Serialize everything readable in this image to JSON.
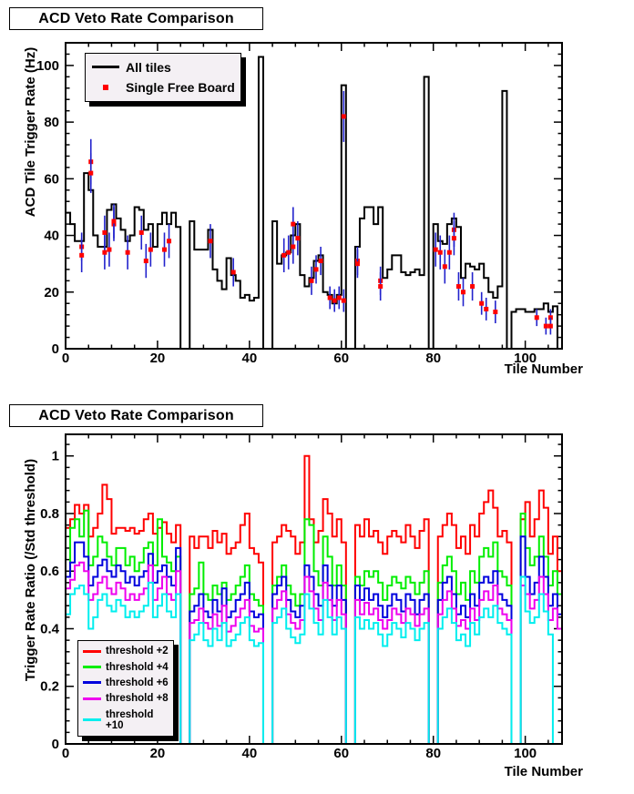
{
  "colors": {
    "frame": "#000000",
    "background": "#ffffff",
    "legend_background": "#f4f0f4",
    "error_bar": "#2222cc",
    "marker": "#ff0000"
  },
  "chart_data": [
    {
      "type": "step-histogram",
      "title": "ACD Veto Rate Comparison",
      "xlabel": "Tile Number",
      "ylabel": "ACD Tile Trigger Rate (Hz)",
      "xlim": [
        0,
        108
      ],
      "ylim": [
        0,
        108
      ],
      "xticks": [
        0,
        20,
        40,
        60,
        80,
        100
      ],
      "xminor_step": 5,
      "yticks": [
        0,
        20,
        40,
        60,
        80,
        100
      ],
      "yminor_step": 4,
      "legend": [
        {
          "label": "All tiles",
          "color": "#000000",
          "style": "line"
        },
        {
          "label": "Single Free Board",
          "color": "#ff0000",
          "style": "marker"
        }
      ],
      "series": [
        {
          "name": "All tiles",
          "color": "#000000",
          "values": [
            48,
            44,
            38,
            38,
            62,
            56,
            40,
            36,
            36,
            49,
            51,
            46,
            42,
            38,
            40,
            50,
            49,
            42,
            44,
            36,
            44,
            48,
            44,
            48,
            43,
            0,
            0,
            45,
            35,
            35,
            35,
            42,
            28,
            24,
            21,
            32,
            26,
            24,
            18,
            19,
            17,
            18,
            103,
            0,
            0,
            45,
            30,
            33,
            34,
            40,
            44,
            26,
            22,
            25,
            31,
            33,
            20,
            19,
            16,
            19,
            93,
            0,
            0,
            36,
            46,
            50,
            50,
            44,
            50,
            25,
            28,
            33,
            33,
            27,
            26,
            27,
            28,
            26,
            96,
            0,
            44,
            38,
            37,
            44,
            46,
            43,
            25,
            30,
            29,
            28,
            30,
            25,
            20,
            18,
            22,
            91,
            0,
            13,
            14,
            14,
            13,
            13,
            14,
            14,
            16,
            13,
            15,
            0
          ]
        }
      ],
      "points": {
        "name": "Single Free Board",
        "marker_color": "#ff0000",
        "error_color": "#2222cc",
        "data": [
          [
            3,
            36,
            5
          ],
          [
            3,
            33,
            6
          ],
          [
            5,
            66,
            8
          ],
          [
            5,
            62,
            7
          ],
          [
            8,
            41,
            6
          ],
          [
            8,
            34,
            6
          ],
          [
            9,
            35,
            6
          ],
          [
            10,
            44,
            6
          ],
          [
            10,
            45,
            6
          ],
          [
            13,
            34,
            6
          ],
          [
            16,
            41,
            6
          ],
          [
            17,
            31,
            6
          ],
          [
            18,
            35,
            6
          ],
          [
            21,
            35,
            6
          ],
          [
            22,
            38,
            6
          ],
          [
            31,
            38,
            6
          ],
          [
            36,
            27,
            5
          ],
          [
            47,
            33,
            6
          ],
          [
            48,
            34,
            6
          ],
          [
            49,
            36,
            6
          ],
          [
            49,
            44,
            6
          ],
          [
            50,
            39,
            6
          ],
          [
            53,
            24,
            5
          ],
          [
            54,
            28,
            5
          ],
          [
            55,
            31,
            5
          ],
          [
            57,
            18,
            4
          ],
          [
            58,
            17,
            4
          ],
          [
            59,
            18,
            4
          ],
          [
            60,
            17,
            4
          ],
          [
            60,
            82,
            9
          ],
          [
            63,
            31,
            5
          ],
          [
            63,
            30,
            5
          ],
          [
            68,
            24,
            5
          ],
          [
            68,
            22,
            5
          ],
          [
            80,
            35,
            6
          ],
          [
            81,
            34,
            6
          ],
          [
            82,
            29,
            6
          ],
          [
            83,
            34,
            6
          ],
          [
            84,
            42,
            6
          ],
          [
            84,
            39,
            6
          ],
          [
            85,
            22,
            5
          ],
          [
            86,
            20,
            5
          ],
          [
            88,
            22,
            5
          ],
          [
            90,
            16,
            4
          ],
          [
            91,
            14,
            4
          ],
          [
            93,
            13,
            4
          ],
          [
            102,
            11,
            3
          ],
          [
            104,
            8,
            3
          ],
          [
            105,
            11,
            3
          ],
          [
            105,
            8,
            3
          ]
        ]
      }
    },
    {
      "type": "step-histogram",
      "title": "ACD Veto Rate Comparison",
      "xlabel": "Tile Number",
      "ylabel": "Trigger Rate Ratio (/Std threshold)",
      "xlim": [
        0,
        108
      ],
      "ylim": [
        0,
        1.075
      ],
      "xticks": [
        0,
        20,
        40,
        60,
        80,
        100
      ],
      "xminor_step": 5,
      "yticks": [
        0,
        0.2,
        0.4,
        0.6,
        0.8,
        1
      ],
      "yminor_step": 0.04,
      "legend": [
        {
          "label": "threshold +2",
          "color": "#ff0000",
          "style": "line"
        },
        {
          "label": "threshold +4",
          "color": "#00ee00",
          "style": "line"
        },
        {
          "label": "threshold +6",
          "color": "#0000dd",
          "style": "line"
        },
        {
          "label": "threshold +8",
          "color": "#ee00ee",
          "style": "line"
        },
        {
          "label": "threshold +10",
          "color": "#00eeee",
          "style": "line"
        }
      ],
      "series": [
        {
          "name": "threshold +2",
          "color": "#ff0000",
          "values": [
            0.75,
            0.78,
            0.83,
            0.8,
            0.83,
            0.72,
            0.75,
            0.8,
            0.9,
            0.85,
            0.73,
            0.75,
            0.75,
            0.74,
            0.75,
            0.73,
            0.74,
            0.78,
            0.8,
            0.73,
            0.75,
            0.77,
            0.73,
            0.7,
            0.76,
            0,
            0,
            0.72,
            0.68,
            0.72,
            0.72,
            0.68,
            0.74,
            0.7,
            0.73,
            0.66,
            0.68,
            0.7,
            0.76,
            0.8,
            0.68,
            0.66,
            0.63,
            0,
            0,
            0.7,
            0.72,
            0.76,
            0.74,
            0.72,
            0.66,
            0.7,
            1.0,
            0.78,
            0.7,
            0.74,
            0.85,
            0.8,
            0.72,
            0.78,
            0.7,
            0,
            0,
            0.76,
            0.72,
            0.78,
            0.72,
            0.74,
            0.7,
            0.66,
            0.72,
            0.74,
            0.72,
            0.7,
            0.76,
            0.72,
            0.68,
            0.74,
            0.78,
            0,
            0,
            0.72,
            0.76,
            0.8,
            0.76,
            0.68,
            0.72,
            0.66,
            0.76,
            0.72,
            0.8,
            0.84,
            0.88,
            0.82,
            0.72,
            0.74,
            0.7,
            0,
            0,
            0.78,
            0.84,
            0.72,
            0.78,
            0.88,
            0.82,
            0.66,
            0.72,
            0.6
          ]
        },
        {
          "name": "threshold +4",
          "color": "#00ee00",
          "values": [
            0.58,
            0.75,
            0.78,
            0.72,
            0.81,
            0.62,
            0.65,
            0.72,
            0.7,
            0.65,
            0.62,
            0.68,
            0.68,
            0.62,
            0.65,
            0.6,
            0.63,
            0.68,
            0.7,
            0.62,
            0.78,
            0.65,
            0.63,
            0.6,
            0.65,
            0,
            0,
            0.52,
            0.54,
            0.63,
            0.52,
            0.5,
            0.55,
            0.52,
            0.56,
            0.5,
            0.52,
            0.55,
            0.58,
            0.62,
            0.52,
            0.5,
            0.48,
            0,
            0,
            0.55,
            0.58,
            0.62,
            0.55,
            0.52,
            0.48,
            0.52,
            0.78,
            0.76,
            0.6,
            0.55,
            0.72,
            0.65,
            0.55,
            0.62,
            0.55,
            0,
            0,
            0.58,
            0.55,
            0.6,
            0.58,
            0.6,
            0.56,
            0.5,
            0.55,
            0.58,
            0.56,
            0.54,
            0.58,
            0.56,
            0.52,
            0.56,
            0.6,
            0,
            0,
            0.56,
            0.62,
            0.65,
            0.6,
            0.52,
            0.56,
            0.5,
            0.6,
            0.56,
            0.65,
            0.68,
            0.65,
            0.7,
            0.6,
            0.58,
            0.55,
            0,
            0,
            0.8,
            0.68,
            0.62,
            0.65,
            0.72,
            0.65,
            0.55,
            0.6,
            0.52
          ]
        },
        {
          "name": "threshold +6",
          "color": "#0000dd",
          "values": [
            0.58,
            0.63,
            0.7,
            0.7,
            0.65,
            0.55,
            0.58,
            0.62,
            0.64,
            0.6,
            0.58,
            0.62,
            0.6,
            0.56,
            0.58,
            0.55,
            0.58,
            0.6,
            0.66,
            0.56,
            0.6,
            0.62,
            0.58,
            0.55,
            0.68,
            0,
            0,
            0.46,
            0.48,
            0.52,
            0.46,
            0.44,
            0.5,
            0.46,
            0.54,
            0.44,
            0.46,
            0.5,
            0.52,
            0.56,
            0.46,
            0.44,
            0.45,
            0,
            0,
            0.52,
            0.55,
            0.58,
            0.5,
            0.46,
            0.44,
            0.48,
            0.62,
            0.58,
            0.52,
            0.48,
            0.62,
            0.55,
            0.48,
            0.55,
            0.5,
            0,
            0,
            0.55,
            0.5,
            0.54,
            0.5,
            0.52,
            0.48,
            0.44,
            0.48,
            0.52,
            0.5,
            0.46,
            0.52,
            0.5,
            0.45,
            0.5,
            0.52,
            0,
            0,
            0.5,
            0.56,
            0.58,
            0.52,
            0.45,
            0.48,
            0.44,
            0.52,
            0.48,
            0.56,
            0.58,
            0.56,
            0.6,
            0.52,
            0.5,
            0.48,
            0,
            0,
            0.72,
            0.58,
            0.52,
            0.56,
            0.65,
            0.58,
            0.48,
            0.52,
            0.45
          ]
        },
        {
          "name": "threshold +8",
          "color": "#ee00ee",
          "values": [
            0.54,
            0.57,
            0.62,
            0.63,
            0.6,
            0.5,
            0.52,
            0.56,
            0.58,
            0.54,
            0.52,
            0.56,
            0.54,
            0.5,
            0.52,
            0.5,
            0.52,
            0.54,
            0.62,
            0.5,
            0.54,
            0.58,
            0.52,
            0.5,
            0.6,
            0,
            0,
            0.42,
            0.43,
            0.47,
            0.42,
            0.4,
            0.45,
            0.41,
            0.48,
            0.39,
            0.41,
            0.44,
            0.47,
            0.5,
            0.41,
            0.39,
            0.4,
            0,
            0,
            0.47,
            0.5,
            0.53,
            0.45,
            0.42,
            0.4,
            0.43,
            0.58,
            0.53,
            0.47,
            0.43,
            0.56,
            0.5,
            0.43,
            0.5,
            0.45,
            0,
            0,
            0.5,
            0.45,
            0.49,
            0.45,
            0.47,
            0.43,
            0.4,
            0.43,
            0.47,
            0.45,
            0.42,
            0.47,
            0.45,
            0.41,
            0.45,
            0.47,
            0,
            0,
            0.45,
            0.5,
            0.53,
            0.47,
            0.41,
            0.43,
            0.4,
            0.47,
            0.43,
            0.5,
            0.53,
            0.5,
            0.55,
            0.47,
            0.45,
            0.43,
            0,
            0,
            0.55,
            0.52,
            0.47,
            0.5,
            0.58,
            0.52,
            0.43,
            0.47,
            0.4
          ]
        },
        {
          "name": "threshold +10",
          "color": "#00eeee",
          "values": [
            0.45,
            0.52,
            0.54,
            0.55,
            0.52,
            0.4,
            0.44,
            0.5,
            0.52,
            0.48,
            0.46,
            0.5,
            0.48,
            0.44,
            0.46,
            0.44,
            0.46,
            0.48,
            0.56,
            0.44,
            0.48,
            0.52,
            0.46,
            0.44,
            0.52,
            0,
            0,
            0.36,
            0.38,
            0.42,
            0.36,
            0.34,
            0.4,
            0.36,
            0.42,
            0.34,
            0.36,
            0.38,
            0.42,
            0.44,
            0.36,
            0.34,
            0.35,
            0,
            0,
            0.42,
            0.44,
            0.47,
            0.4,
            0.37,
            0.35,
            0.38,
            0.52,
            0.47,
            0.42,
            0.38,
            0.5,
            0.44,
            0.38,
            0.44,
            0.4,
            0,
            0,
            0.44,
            0.4,
            0.43,
            0.4,
            0.42,
            0.38,
            0.34,
            0.38,
            0.42,
            0.4,
            0.37,
            0.42,
            0.4,
            0.36,
            0.4,
            0.42,
            0,
            0,
            0.4,
            0.44,
            0.47,
            0.42,
            0.36,
            0.38,
            0.34,
            0.42,
            0.38,
            0.44,
            0.47,
            0.44,
            0.48,
            0.42,
            0.4,
            0.38,
            0,
            0,
            0.58,
            0.46,
            0.42,
            0.44,
            0.52,
            0.46,
            0.38,
            0,
            0
          ]
        }
      ]
    }
  ]
}
